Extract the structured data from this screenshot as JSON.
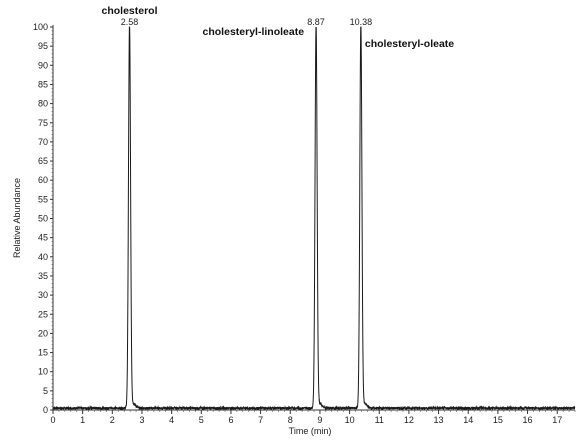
{
  "chart_data": {
    "type": "line",
    "title": "",
    "xlabel": "Time (min)",
    "ylabel": "Relative Abundance",
    "xlim": [
      0,
      17.6
    ],
    "ylim": [
      0,
      100
    ],
    "xticks": [
      0,
      1,
      2,
      3,
      4,
      5,
      6,
      7,
      8,
      9,
      10,
      11,
      12,
      13,
      14,
      15,
      16,
      17
    ],
    "yticks": [
      0,
      5,
      10,
      15,
      20,
      25,
      30,
      35,
      40,
      45,
      50,
      55,
      60,
      65,
      70,
      75,
      80,
      85,
      90,
      95,
      100
    ],
    "grid": false,
    "line_color": "#1a1a1a",
    "peaks": [
      {
        "name": "cholesterol",
        "time_label": "2.58",
        "time": 2.58,
        "height": 100
      },
      {
        "name": "cholesteryl-linoleate",
        "time_label": "8.87",
        "time": 8.87,
        "height": 100
      },
      {
        "name": "cholesteryl-oleate",
        "time_label": "10.38",
        "time": 10.38,
        "height": 100
      }
    ]
  }
}
